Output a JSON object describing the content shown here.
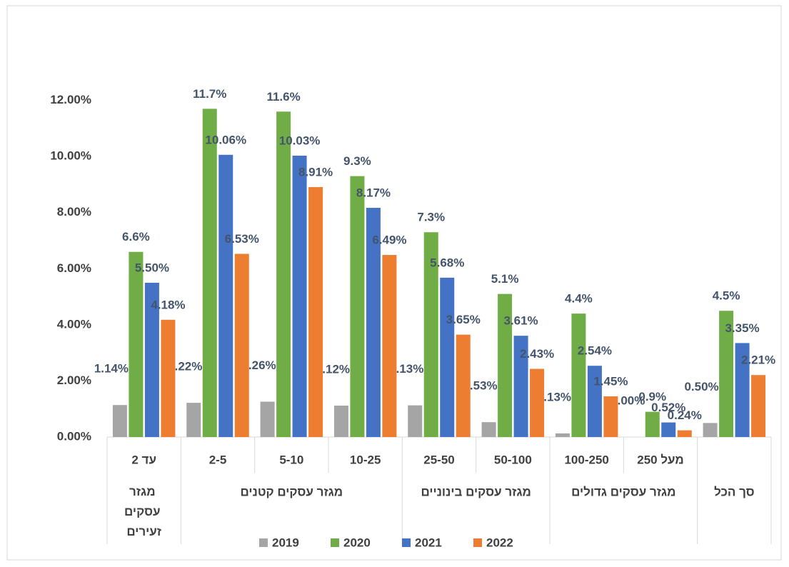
{
  "chart_data": {
    "type": "bar",
    "categories": [
      "עד 2",
      "2-5",
      "5-10",
      "10-25",
      "25-50",
      "50-100",
      "100-250",
      "מעל 250",
      null
    ],
    "groups": [
      {
        "label": "מגזר עסקים זעירים",
        "span": 1
      },
      {
        "label": "מגזר עסקים קטנים",
        "span": 3
      },
      {
        "label": "מגזר עסקים בינוניים",
        "span": 2
      },
      {
        "label": "מגזר עסקים גדולים",
        "span": 2
      },
      {
        "label": "סך הכל",
        "span": 1
      }
    ],
    "series": [
      {
        "name": "2019",
        "color": "#a5a5a5",
        "values": [
          1.14,
          1.22,
          1.26,
          1.12,
          1.13,
          0.53,
          0.13,
          0.0,
          0.5
        ],
        "value_labels": [
          "1.14%",
          "1.22%",
          "1.26%",
          "1.12%",
          "1.13%",
          "0.53%",
          "0.13%",
          "0.00%",
          "0.50%"
        ]
      },
      {
        "name": "2020",
        "color": "#70ad47",
        "values": [
          6.6,
          11.7,
          11.6,
          9.3,
          7.3,
          5.1,
          4.4,
          0.9,
          4.5
        ],
        "value_labels": [
          "6.6%",
          "11.7%",
          "11.6%",
          "9.3%",
          "7.3%",
          "5.1%",
          "4.4%",
          "0.9%",
          "4.5%"
        ]
      },
      {
        "name": "2021",
        "color": "#4472c4",
        "values": [
          5.5,
          10.06,
          10.03,
          8.17,
          5.68,
          3.61,
          2.54,
          0.52,
          3.35
        ],
        "value_labels": [
          "5.50%",
          "10.06%",
          "10.03%",
          "8.17%",
          "5.68%",
          "3.61%",
          "2.54%",
          "0.52%",
          "3.35%"
        ]
      },
      {
        "name": "2022",
        "color": "#ed7d31",
        "values": [
          4.18,
          6.53,
          8.91,
          6.49,
          3.65,
          2.43,
          1.45,
          0.24,
          2.21
        ],
        "value_labels": [
          "4.18%",
          "6.53%",
          "8.91%",
          "6.49%",
          "3.65%",
          "2.43%",
          "1.45%",
          "0.24%",
          "2.21%"
        ]
      }
    ],
    "ylim": [
      0,
      14
    ],
    "yticks": [
      {
        "value": 0,
        "label": "0.00%"
      },
      {
        "value": 2,
        "label": "2.00%"
      },
      {
        "value": 4,
        "label": "4.00%"
      },
      {
        "value": 6,
        "label": "6.00%"
      },
      {
        "value": 8,
        "label": "8.00%"
      },
      {
        "value": 10,
        "label": "10.00%"
      },
      {
        "value": 12,
        "label": "12.00%"
      }
    ],
    "grid": false,
    "legend": "bottom"
  }
}
